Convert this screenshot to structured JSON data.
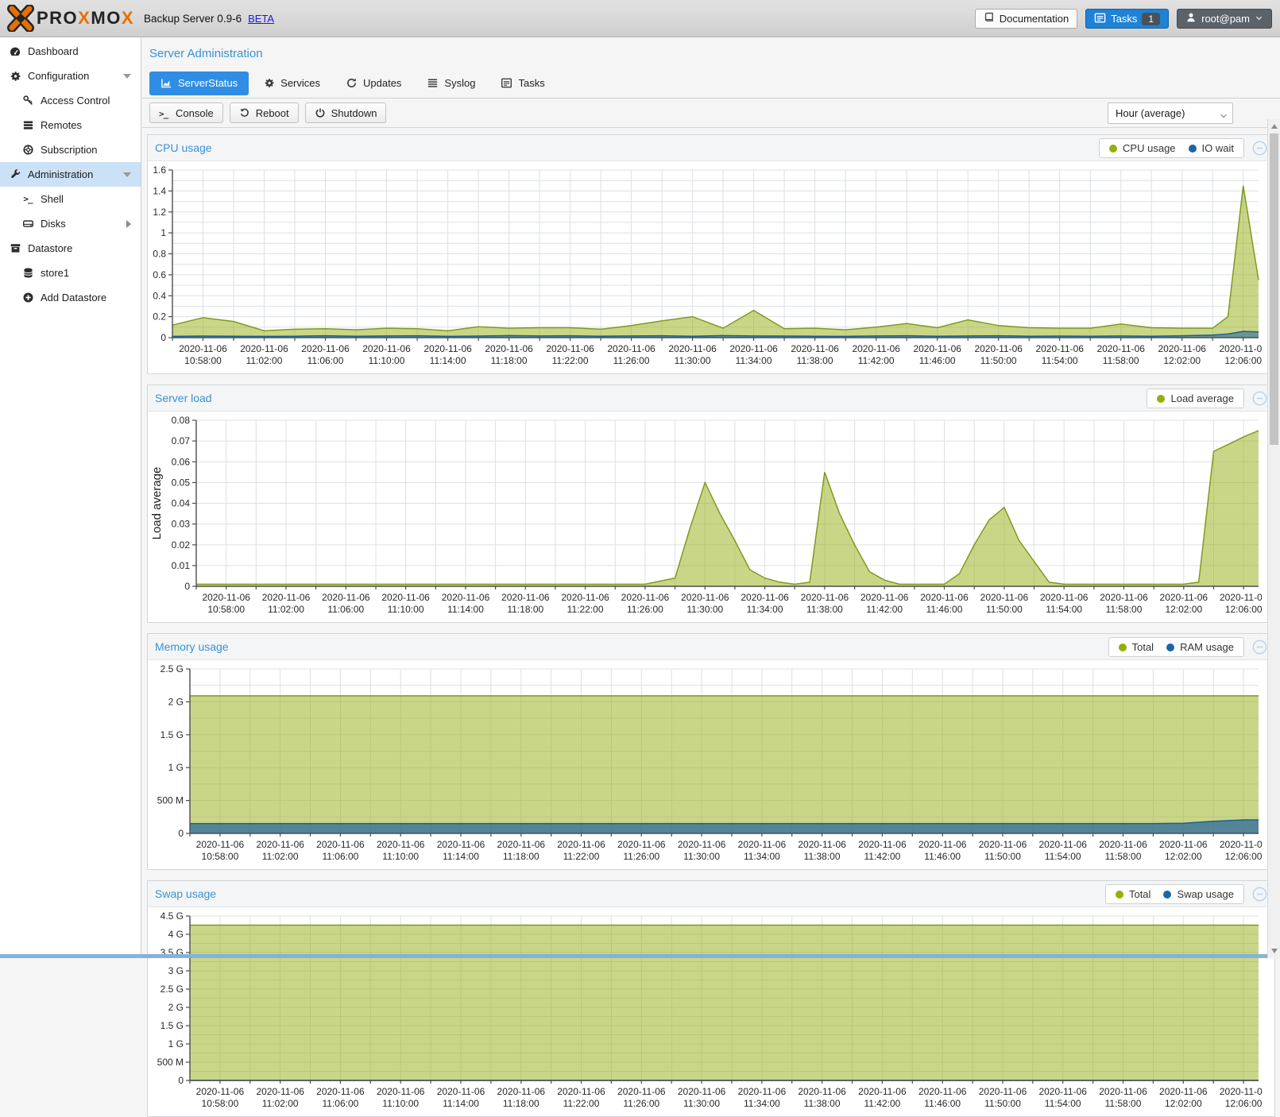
{
  "colors": {
    "accent_blue": "#2f8ee3",
    "title_blue": "#3892d4",
    "selected_row": "#cbe1f5",
    "series_green_dot": "#94ae0a",
    "series_blue_dot": "#1a66a8",
    "splitter_blue": "#85b2d8"
  },
  "header": {
    "logo_segments": {
      "s1": "PRO",
      "s2": "X",
      "s3": "MO",
      "s4": "X"
    },
    "subtitle": "Backup Server 0.9-6",
    "beta": "BETA",
    "documentation": "Documentation",
    "tasks": "Tasks",
    "tasks_badge": "1",
    "user": "root@pam"
  },
  "sidebar": {
    "items": [
      {
        "label": "Dashboard",
        "level": 0,
        "selected": false
      },
      {
        "label": "Configuration",
        "level": 0,
        "selected": false,
        "expand": "down"
      },
      {
        "label": "Access Control",
        "level": 1,
        "selected": false
      },
      {
        "label": "Remotes",
        "level": 1,
        "selected": false
      },
      {
        "label": "Subscription",
        "level": 1,
        "selected": false
      },
      {
        "label": "Administration",
        "level": 0,
        "selected": true,
        "expand": "down"
      },
      {
        "label": "Shell",
        "level": 1,
        "selected": false
      },
      {
        "label": "Disks",
        "level": 1,
        "selected": false,
        "expand": "right"
      },
      {
        "label": "Datastore",
        "level": 0,
        "selected": false
      },
      {
        "label": "store1",
        "level": 1,
        "selected": false
      },
      {
        "label": "Add Datastore",
        "level": 1,
        "selected": false
      }
    ]
  },
  "main": {
    "title": "Server Administration",
    "tabs": [
      {
        "label": "ServerStatus",
        "active": true
      },
      {
        "label": "Services",
        "active": false
      },
      {
        "label": "Updates",
        "active": false
      },
      {
        "label": "Syslog",
        "active": false
      },
      {
        "label": "Tasks",
        "active": false
      }
    ],
    "toolbar": {
      "console": "Console",
      "reboot": "Reboot",
      "shutdown": "Shutdown",
      "timeframe_value": "Hour (average)"
    }
  },
  "chart_data": [
    {
      "type": "area",
      "title": "CPU usage",
      "xlim": [
        0,
        71
      ],
      "ylim": [
        0,
        1.6
      ],
      "xgrid": 2,
      "ygrid": 0.1,
      "grid": true,
      "legend_position": "top-right",
      "x_labels": {
        "date": "2020-11-06",
        "t_start": 2,
        "t_step": 4,
        "times": [
          "10:58:00",
          "11:02:00",
          "11:06:00",
          "11:10:00",
          "11:14:00",
          "11:18:00",
          "11:22:00",
          "11:26:00",
          "11:30:00",
          "11:34:00",
          "11:38:00",
          "11:42:00",
          "11:46:00",
          "11:50:00",
          "11:54:00",
          "11:58:00",
          "12:02:00",
          "12:06:00"
        ]
      },
      "yticks": [
        {
          "v": 0,
          "label": "0"
        },
        {
          "v": 0.2,
          "label": "0.2"
        },
        {
          "v": 0.4,
          "label": "0.4"
        },
        {
          "v": 0.6,
          "label": "0.6"
        },
        {
          "v": 0.8,
          "label": "0.8"
        },
        {
          "v": 1,
          "label": "1"
        },
        {
          "v": 1.2,
          "label": "1.2"
        },
        {
          "v": 1.4,
          "label": "1.4"
        },
        {
          "v": 1.6,
          "label": "1.6"
        }
      ],
      "series": [
        {
          "name": "CPU usage",
          "dot": "#94ae0a",
          "line": "#7f9a1e",
          "fill": "rgba(150,173,15,0.5)",
          "points": [
            [
              0,
              0.12
            ],
            [
              2,
              0.19
            ],
            [
              4,
              0.155
            ],
            [
              6,
              0.065
            ],
            [
              8,
              0.08
            ],
            [
              10,
              0.085
            ],
            [
              12,
              0.075
            ],
            [
              14,
              0.09
            ],
            [
              16,
              0.085
            ],
            [
              18,
              0.065
            ],
            [
              20,
              0.105
            ],
            [
              22,
              0.09
            ],
            [
              24,
              0.095
            ],
            [
              26,
              0.095
            ],
            [
              28,
              0.08
            ],
            [
              30,
              0.115
            ],
            [
              32,
              0.16
            ],
            [
              34,
              0.2
            ],
            [
              36,
              0.09
            ],
            [
              38,
              0.26
            ],
            [
              40,
              0.085
            ],
            [
              42,
              0.09
            ],
            [
              44,
              0.075
            ],
            [
              46,
              0.1
            ],
            [
              48,
              0.135
            ],
            [
              50,
              0.095
            ],
            [
              52,
              0.17
            ],
            [
              54,
              0.115
            ],
            [
              56,
              0.095
            ],
            [
              58,
              0.09
            ],
            [
              60,
              0.09
            ],
            [
              62,
              0.13
            ],
            [
              64,
              0.095
            ],
            [
              66,
              0.09
            ],
            [
              68,
              0.09
            ],
            [
              69,
              0.2
            ],
            [
              70,
              1.45
            ],
            [
              71,
              0.55
            ]
          ]
        },
        {
          "name": "IO wait",
          "dot": "#1a66a8",
          "line": "#1d5f8f",
          "fill": "rgba(43,106,156,0.6)",
          "points": [
            [
              0,
              0.012
            ],
            [
              2,
              0.015
            ],
            [
              4,
              0.013
            ],
            [
              6,
              0.012
            ],
            [
              8,
              0.014
            ],
            [
              10,
              0.018
            ],
            [
              12,
              0.014
            ],
            [
              14,
              0.016
            ],
            [
              16,
              0.018
            ],
            [
              18,
              0.012
            ],
            [
              20,
              0.015
            ],
            [
              22,
              0.02
            ],
            [
              24,
              0.016
            ],
            [
              26,
              0.018
            ],
            [
              28,
              0.014
            ],
            [
              30,
              0.016
            ],
            [
              32,
              0.018
            ],
            [
              34,
              0.014
            ],
            [
              36,
              0.02
            ],
            [
              38,
              0.016
            ],
            [
              40,
              0.015
            ],
            [
              42,
              0.014
            ],
            [
              44,
              0.012
            ],
            [
              46,
              0.016
            ],
            [
              48,
              0.018
            ],
            [
              50,
              0.014
            ],
            [
              52,
              0.016
            ],
            [
              54,
              0.018
            ],
            [
              56,
              0.014
            ],
            [
              58,
              0.015
            ],
            [
              60,
              0.013
            ],
            [
              62,
              0.016
            ],
            [
              64,
              0.014
            ],
            [
              66,
              0.018
            ],
            [
              68,
              0.025
            ],
            [
              69,
              0.035
            ],
            [
              70,
              0.06
            ],
            [
              71,
              0.055
            ]
          ]
        }
      ]
    },
    {
      "type": "area",
      "title": "Server load",
      "ylabel": "Load average",
      "xlim": [
        0,
        71
      ],
      "ylim": [
        0,
        0.08
      ],
      "xgrid": 2,
      "ygrid": 0.01,
      "grid": true,
      "legend_position": "top-right",
      "x_labels": {
        "date": "2020-11-06",
        "t_start": 2,
        "t_step": 4,
        "times": [
          "10:58:00",
          "11:02:00",
          "11:06:00",
          "11:10:00",
          "11:14:00",
          "11:18:00",
          "11:22:00",
          "11:26:00",
          "11:30:00",
          "11:34:00",
          "11:38:00",
          "11:42:00",
          "11:46:00",
          "11:50:00",
          "11:54:00",
          "11:58:00",
          "12:02:00",
          "12:06:00"
        ]
      },
      "yticks": [
        {
          "v": 0,
          "label": "0"
        },
        {
          "v": 0.01,
          "label": "0.01"
        },
        {
          "v": 0.02,
          "label": "0.02"
        },
        {
          "v": 0.03,
          "label": "0.03"
        },
        {
          "v": 0.04,
          "label": "0.04"
        },
        {
          "v": 0.05,
          "label": "0.05"
        },
        {
          "v": 0.06,
          "label": "0.06"
        },
        {
          "v": 0.07,
          "label": "0.07"
        },
        {
          "v": 0.08,
          "label": "0.08"
        }
      ],
      "series": [
        {
          "name": "Load average",
          "dot": "#94ae0a",
          "line": "#7f9a1e",
          "fill": "rgba(150,173,15,0.5)",
          "points": [
            [
              0,
              0.001
            ],
            [
              30,
              0.001
            ],
            [
              32,
              0.004
            ],
            [
              33,
              0.028
            ],
            [
              34,
              0.05
            ],
            [
              35,
              0.035
            ],
            [
              36,
              0.022
            ],
            [
              37,
              0.008
            ],
            [
              38,
              0.004
            ],
            [
              39,
              0.002
            ],
            [
              40,
              0.001
            ],
            [
              41,
              0.002
            ],
            [
              42,
              0.055
            ],
            [
              43,
              0.035
            ],
            [
              44,
              0.02
            ],
            [
              45,
              0.007
            ],
            [
              46,
              0.003
            ],
            [
              47,
              0.001
            ],
            [
              50,
              0.001
            ],
            [
              51,
              0.006
            ],
            [
              52,
              0.02
            ],
            [
              53,
              0.032
            ],
            [
              54,
              0.038
            ],
            [
              55,
              0.022
            ],
            [
              56,
              0.012
            ],
            [
              57,
              0.002
            ],
            [
              58,
              0.001
            ],
            [
              66,
              0.001
            ],
            [
              67,
              0.002
            ],
            [
              68,
              0.065
            ],
            [
              70,
              0.072
            ],
            [
              71,
              0.075
            ]
          ]
        }
      ]
    },
    {
      "type": "area",
      "title": "Memory usage",
      "xlim": [
        0,
        71
      ],
      "ylim": [
        0,
        2500000000.0
      ],
      "xgrid": 2,
      "ygrid": 250000000.0,
      "grid": true,
      "legend_position": "top-right",
      "x_labels": {
        "date": "2020-11-06",
        "t_start": 2,
        "t_step": 4,
        "times": [
          "10:58:00",
          "11:02:00",
          "11:06:00",
          "11:10:00",
          "11:14:00",
          "11:18:00",
          "11:22:00",
          "11:26:00",
          "11:30:00",
          "11:34:00",
          "11:38:00",
          "11:42:00",
          "11:46:00",
          "11:50:00",
          "11:54:00",
          "11:58:00",
          "12:02:00",
          "12:06:00"
        ]
      },
      "yticks": [
        {
          "v": 0,
          "label": "0"
        },
        {
          "v": 500000000.0,
          "label": "500 M"
        },
        {
          "v": 1000000000.0,
          "label": "1 G"
        },
        {
          "v": 1500000000.0,
          "label": "1.5 G"
        },
        {
          "v": 2000000000.0,
          "label": "2 G"
        },
        {
          "v": 2500000000.0,
          "label": "2.5 G"
        }
      ],
      "series": [
        {
          "name": "Total",
          "dot": "#94ae0a",
          "line": "#7f9a1e",
          "fill": "rgba(150,173,15,0.5)",
          "points": [
            [
              0,
              2090000000.0
            ],
            [
              71,
              2090000000.0
            ]
          ]
        },
        {
          "name": "RAM usage",
          "dot": "#1a66a8",
          "line": "#1d5f8f",
          "fill": "rgba(43,106,156,0.75)",
          "points": [
            [
              0,
              150000000.0
            ],
            [
              64,
              150000000.0
            ],
            [
              66,
              155000000.0
            ],
            [
              68,
              185000000.0
            ],
            [
              70,
              205000000.0
            ],
            [
              71,
              205000000.0
            ]
          ]
        }
      ]
    },
    {
      "type": "area",
      "title": "Swap usage",
      "xlim": [
        0,
        71
      ],
      "ylim": [
        0,
        4500000000.0
      ],
      "xgrid": 2,
      "ygrid": 250000000.0,
      "grid": true,
      "legend_position": "top-right",
      "x_labels": {
        "date": "2020-11-06",
        "t_start": 2,
        "t_step": 4,
        "times": [
          "10:58:00",
          "11:02:00",
          "11:06:00",
          "11:10:00",
          "11:14:00",
          "11:18:00",
          "11:22:00",
          "11:26:00",
          "11:30:00",
          "11:34:00",
          "11:38:00",
          "11:42:00",
          "11:46:00",
          "11:50:00",
          "11:54:00",
          "11:58:00",
          "12:02:00",
          "12:06:00"
        ]
      },
      "yticks": [
        {
          "v": 0,
          "label": "0"
        },
        {
          "v": 500000000.0,
          "label": "500 M"
        },
        {
          "v": 1000000000.0,
          "label": "1 G"
        },
        {
          "v": 1500000000.0,
          "label": "1.5 G"
        },
        {
          "v": 2000000000.0,
          "label": "2 G"
        },
        {
          "v": 2500000000.0,
          "label": "2.5 G"
        },
        {
          "v": 3000000000.0,
          "label": "3 G"
        },
        {
          "v": 3500000000.0,
          "label": "3.5 G"
        },
        {
          "v": 4000000000.0,
          "label": "4 G"
        },
        {
          "v": 4500000000.0,
          "label": "4.5 G"
        }
      ],
      "series": [
        {
          "name": "Total",
          "dot": "#94ae0a",
          "line": "#7f9a1e",
          "fill": "rgba(150,173,15,0.5)",
          "points": [
            [
              0,
              4250000000.0
            ],
            [
              71,
              4250000000.0
            ]
          ]
        },
        {
          "name": "Swap usage",
          "dot": "#1a66a8",
          "line": "#1d5f8f",
          "fill": "rgba(43,106,156,0.75)",
          "points": [
            [
              0,
              2000000.0
            ],
            [
              71,
              2000000.0
            ]
          ]
        }
      ]
    }
  ]
}
